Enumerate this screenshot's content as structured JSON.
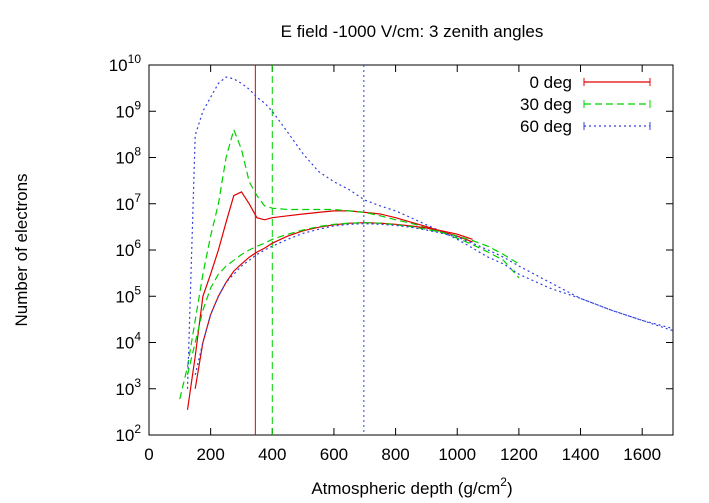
{
  "chart_data": {
    "type": "line",
    "title": "E field -1000 V/cm: 3 zenith angles",
    "x_label": "Atmospheric depth (g/cm^2)",
    "y_label": "Number of electrons",
    "log_y": true,
    "legend": "top-right",
    "xlim": [
      0,
      1700
    ],
    "xticks": [
      0,
      200,
      400,
      600,
      800,
      1000,
      1200,
      1400,
      1600
    ],
    "ylim": [
      100,
      10000000000
    ],
    "yticks": [
      {
        "value": 100,
        "label": "10^2"
      },
      {
        "value": 1000,
        "label": "10^3"
      },
      {
        "value": 10000,
        "label": "10^4"
      },
      {
        "value": 100000,
        "label": "10^5"
      },
      {
        "value": 1000000,
        "label": "10^6"
      },
      {
        "value": 10000000,
        "label": "10^7"
      },
      {
        "value": 100000000,
        "label": "10^8"
      },
      {
        "value": 1000000000,
        "label": "10^9"
      },
      {
        "value": 10000000000,
        "label": "10^10"
      }
    ],
    "x": [
      100,
      125,
      150,
      175,
      200,
      225,
      250,
      275,
      300,
      325,
      350,
      375,
      400,
      450,
      500,
      550,
      600,
      650,
      700,
      750,
      800,
      850,
      900,
      950,
      1000,
      1050,
      1100,
      1150,
      1200,
      1300,
      1400,
      1500,
      1600,
      1700
    ],
    "series": [
      {
        "name": "0 deg",
        "color": "#e00000",
        "dash": "none",
        "values": [
          null,
          350,
          5000,
          100000,
          300000,
          1000000,
          4000000,
          15000000,
          18000000,
          10000000,
          5000000,
          4500000,
          5000000,
          5500000,
          6000000,
          6500000,
          7000000,
          7000000,
          6500000,
          6000000,
          5000000,
          4000000,
          3200000,
          2500000,
          2000000,
          1500000,
          null,
          null,
          null,
          null,
          null,
          null,
          null,
          null
        ]
      },
      {
        "name": "30 deg",
        "color": "#00d000",
        "dash": "7,4",
        "values": [
          600,
          3000,
          30000,
          300000,
          2000000,
          10000000,
          100000000,
          400000000,
          150000000,
          30000000,
          15000000,
          9000000,
          8000000,
          7500000,
          7500000,
          7500000,
          7500000,
          7000000,
          6500000,
          5500000,
          4500000,
          3800000,
          3000000,
          2400000,
          1800000,
          1300000,
          900000,
          600000,
          250000,
          null,
          null,
          null,
          null,
          null
        ]
      },
      {
        "name": "60 deg",
        "color": "#3040e0",
        "dash": "2,3",
        "values": [
          null,
          1000,
          300000000,
          1000000000,
          2000000000,
          4000000000,
          5500000000,
          5000000000,
          4000000000,
          3000000000,
          2000000000,
          1500000000,
          1000000000,
          350000000,
          120000000,
          50000000,
          30000000,
          20000000,
          12000000,
          9000000,
          7000000,
          5000000,
          3500000,
          2500000,
          1700000,
          1100000,
          700000,
          500000,
          300000,
          150000,
          90000,
          50000,
          30000,
          20000
        ]
      },
      {
        "color": "#e00000",
        "dash": "none",
        "values": [
          null,
          null,
          1000,
          10000,
          40000,
          100000,
          200000,
          350000,
          500000,
          700000,
          900000,
          1100000,
          1400000,
          2000000,
          2600000,
          3100000,
          3500000,
          3800000,
          3900000,
          3800000,
          3600000,
          3300000,
          3000000,
          2600000,
          2200000,
          1700000,
          null,
          null,
          null,
          null,
          null,
          null,
          null,
          null
        ]
      },
      {
        "color": "#00d000",
        "dash": "7,4",
        "values": [
          null,
          2000,
          10000,
          50000,
          150000,
          300000,
          450000,
          600000,
          800000,
          1000000,
          1200000,
          1400000,
          1700000,
          2200000,
          2700000,
          3200000,
          3600000,
          3800000,
          3900000,
          3800000,
          3500000,
          3200000,
          2800000,
          2400000,
          2000000,
          1600000,
          1200000,
          800000,
          500000,
          null,
          null,
          null,
          null,
          null
        ]
      },
      {
        "color": "#3040e0",
        "dash": "2,3",
        "values": [
          null,
          null,
          2000,
          10000,
          40000,
          100000,
          200000,
          300000,
          450000,
          600000,
          800000,
          1000000,
          1200000,
          1700000,
          2300000,
          2800000,
          3300000,
          3600000,
          3700000,
          3600000,
          3400000,
          3100000,
          2700000,
          2300000,
          1900000,
          1400000,
          1000000,
          700000,
          450000,
          200000,
          90000,
          50000,
          30000,
          18000
        ]
      }
    ],
    "vlines": [
      {
        "x": 345,
        "color": "#e00000",
        "dash": "none"
      },
      {
        "x": 400,
        "color": "#00d000",
        "dash": "7,4"
      },
      {
        "x": 697,
        "color": "#3040e0",
        "dash": "2,3"
      }
    ]
  }
}
